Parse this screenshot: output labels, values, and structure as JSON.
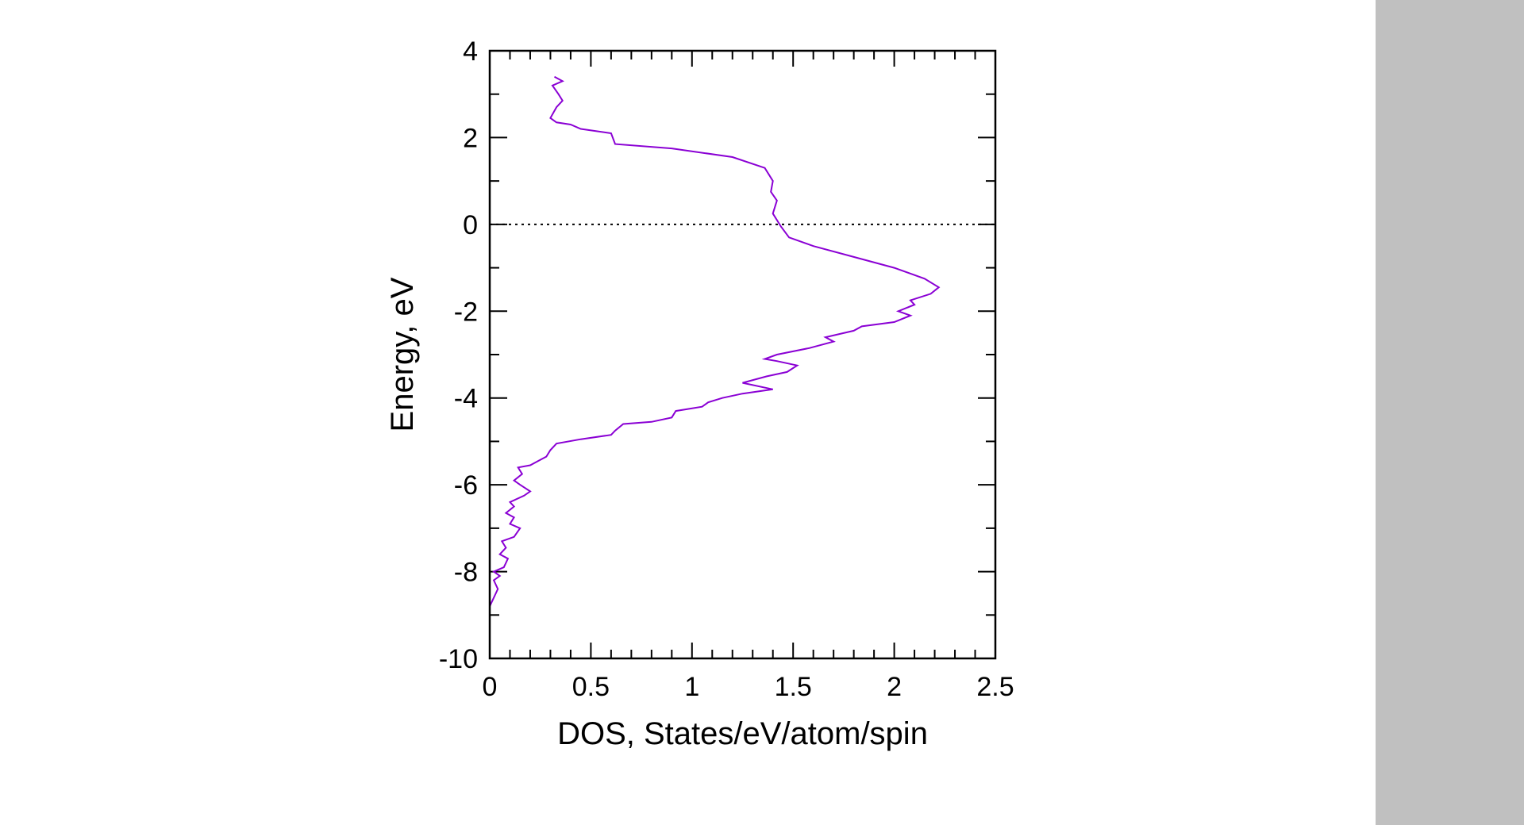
{
  "colors": {
    "sidebar": "#c0c0c0",
    "series": "#8a00d4",
    "axis": "#000000"
  },
  "chart_data": {
    "type": "line",
    "orientation": "energy-on-y",
    "xlabel": "DOS, States/eV/atom/spin",
    "ylabel": "Energy, eV",
    "xlim": [
      0,
      2.5
    ],
    "ylim": [
      -10,
      4
    ],
    "xticks": [
      "0",
      "0.5",
      "1",
      "1.5",
      "2",
      "2.5"
    ],
    "yticks": [
      "4",
      "2",
      "0",
      "-2",
      "-4",
      "-6",
      "-8",
      "-10"
    ],
    "reference_line": {
      "y": 0,
      "style": "dotted"
    },
    "grid": false,
    "legend": "none",
    "series": [
      {
        "color": "#8a00d4",
        "points": [
          [
            0.0,
            -10.0
          ],
          [
            0.0,
            -9.6
          ],
          [
            0.0,
            -9.2
          ],
          [
            0.0,
            -8.8
          ],
          [
            0.02,
            -8.6
          ],
          [
            0.04,
            -8.4
          ],
          [
            0.02,
            -8.2
          ],
          [
            0.05,
            -8.1
          ],
          [
            0.02,
            -8.0
          ],
          [
            0.07,
            -7.9
          ],
          [
            0.09,
            -7.7
          ],
          [
            0.05,
            -7.6
          ],
          [
            0.08,
            -7.45
          ],
          [
            0.06,
            -7.3
          ],
          [
            0.12,
            -7.2
          ],
          [
            0.15,
            -7.0
          ],
          [
            0.1,
            -6.9
          ],
          [
            0.12,
            -6.75
          ],
          [
            0.08,
            -6.65
          ],
          [
            0.12,
            -6.5
          ],
          [
            0.1,
            -6.4
          ],
          [
            0.17,
            -6.25
          ],
          [
            0.2,
            -6.15
          ],
          [
            0.15,
            -6.0
          ],
          [
            0.12,
            -5.9
          ],
          [
            0.16,
            -5.75
          ],
          [
            0.14,
            -5.6
          ],
          [
            0.2,
            -5.55
          ],
          [
            0.24,
            -5.45
          ],
          [
            0.28,
            -5.35
          ],
          [
            0.3,
            -5.2
          ],
          [
            0.33,
            -5.05
          ],
          [
            0.45,
            -4.95
          ],
          [
            0.6,
            -4.85
          ],
          [
            0.62,
            -4.75
          ],
          [
            0.66,
            -4.6
          ],
          [
            0.8,
            -4.55
          ],
          [
            0.9,
            -4.45
          ],
          [
            0.92,
            -4.3
          ],
          [
            1.05,
            -4.2
          ],
          [
            1.08,
            -4.1
          ],
          [
            1.15,
            -4.0
          ],
          [
            1.25,
            -3.9
          ],
          [
            1.4,
            -3.8
          ],
          [
            1.25,
            -3.65
          ],
          [
            1.37,
            -3.5
          ],
          [
            1.47,
            -3.4
          ],
          [
            1.52,
            -3.25
          ],
          [
            1.42,
            -3.15
          ],
          [
            1.36,
            -3.1
          ],
          [
            1.42,
            -3.0
          ],
          [
            1.58,
            -2.85
          ],
          [
            1.7,
            -2.7
          ],
          [
            1.66,
            -2.6
          ],
          [
            1.8,
            -2.45
          ],
          [
            1.84,
            -2.35
          ],
          [
            2.0,
            -2.25
          ],
          [
            2.08,
            -2.1
          ],
          [
            2.02,
            -2.0
          ],
          [
            2.1,
            -1.85
          ],
          [
            2.08,
            -1.75
          ],
          [
            2.18,
            -1.6
          ],
          [
            2.22,
            -1.45
          ],
          [
            2.15,
            -1.25
          ],
          [
            2.0,
            -1.0
          ],
          [
            1.8,
            -0.75
          ],
          [
            1.6,
            -0.5
          ],
          [
            1.48,
            -0.3
          ],
          [
            1.44,
            -0.05
          ],
          [
            1.4,
            0.25
          ],
          [
            1.42,
            0.55
          ],
          [
            1.39,
            0.75
          ],
          [
            1.4,
            1.0
          ],
          [
            1.36,
            1.3
          ],
          [
            1.2,
            1.55
          ],
          [
            0.9,
            1.75
          ],
          [
            0.62,
            1.85
          ],
          [
            0.6,
            2.1
          ],
          [
            0.45,
            2.2
          ],
          [
            0.4,
            2.3
          ],
          [
            0.33,
            2.35
          ],
          [
            0.3,
            2.45
          ],
          [
            0.33,
            2.7
          ],
          [
            0.36,
            2.85
          ],
          [
            0.34,
            3.0
          ],
          [
            0.31,
            3.2
          ],
          [
            0.36,
            3.3
          ],
          [
            0.32,
            3.4
          ]
        ]
      }
    ]
  }
}
